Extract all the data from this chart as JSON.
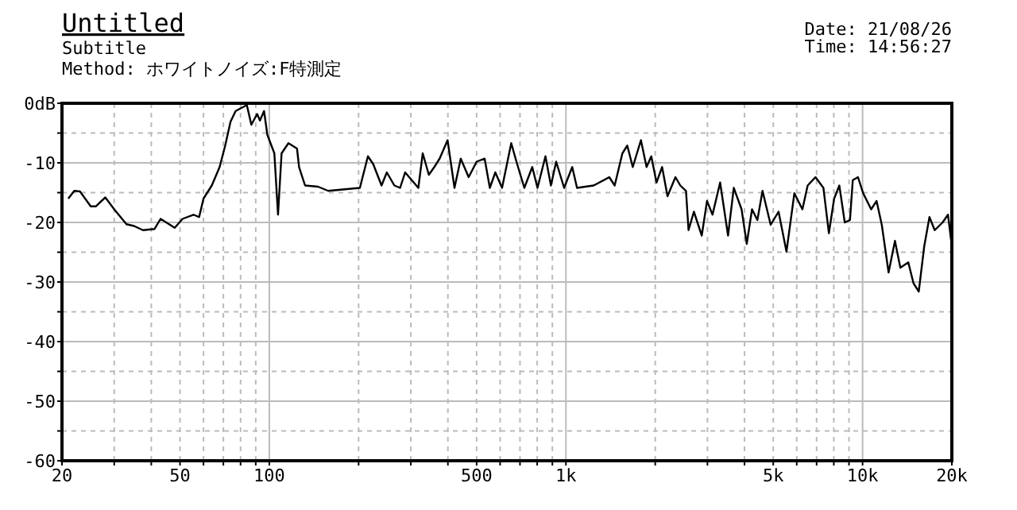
{
  "chart_data": {
    "type": "line",
    "title": "Untitled",
    "subtitle": "Subtitle",
    "annotations": [
      "Method:  ホワイトノイズ:F特測定",
      "Date: 21/08/26",
      "Time: 14:56:27"
    ],
    "x": [
      21,
      22,
      23,
      25,
      26,
      28,
      30,
      33,
      35,
      37.5,
      41,
      43,
      48,
      51,
      55.5,
      58,
      60,
      64,
      68,
      71,
      74,
      77,
      84,
      87,
      91,
      93,
      96,
      98.5,
      104,
      107,
      110,
      116,
      124,
      126,
      132,
      146,
      158,
      202,
      215,
      224,
      239,
      249,
      264,
      276,
      287,
      318,
      329,
      345,
      360,
      375,
      399,
      421,
      442,
      470,
      500,
      532,
      554,
      578,
      609,
      654,
      681,
      724,
      770,
      802,
      853,
      890,
      927,
      986,
      1050,
      1090,
      1240,
      1400,
      1460,
      1550,
      1610,
      1680,
      1790,
      1870,
      1940,
      2020,
      2110,
      2200,
      2340,
      2430,
      2540,
      2590,
      2700,
      2870,
      2990,
      3120,
      3310,
      3520,
      3680,
      3910,
      4070,
      4240,
      4420,
      4600,
      4900,
      5210,
      5540,
      5890,
      6270,
      6530,
      6940,
      7380,
      7700,
      8020,
      8350,
      8710,
      9070,
      9270,
      9650,
      10050,
      10690,
      11150,
      11610,
      12240,
      12860,
      13410,
      14260,
      14850,
      15470,
      16140,
      16810,
      17510,
      18620,
      19410,
      20000
    ],
    "series": [
      {
        "color": "#000000",
        "values": [
          -16,
          -14.7,
          -14.8,
          -17.3,
          -17.3,
          -15.8,
          -17.8,
          -20.3,
          -20.6,
          -21.3,
          -21.1,
          -19.4,
          -20.9,
          -19.4,
          -18.7,
          -19.1,
          -16,
          -13.8,
          -10.7,
          -7.1,
          -3.1,
          -1.3,
          -0.3,
          -3.6,
          -1.8,
          -2.9,
          -1.3,
          -5.3,
          -8.4,
          -18.7,
          -8.4,
          -6.7,
          -7.6,
          -10.7,
          -13.8,
          -14,
          -14.7,
          -14.2,
          -8.9,
          -10.2,
          -13.8,
          -11.6,
          -13.8,
          -14.2,
          -11.6,
          -14.2,
          -8.4,
          -12,
          -10.7,
          -9.3,
          -6.2,
          -14.2,
          -9.3,
          -12.4,
          -9.8,
          -9.3,
          -14.2,
          -11.6,
          -14.2,
          -6.7,
          -9.8,
          -14.2,
          -10.7,
          -14.2,
          -8.9,
          -13.8,
          -9.8,
          -14.2,
          -10.7,
          -14.2,
          -13.8,
          -12.4,
          -13.8,
          -8.4,
          -7.1,
          -10.7,
          -6.2,
          -10.7,
          -8.9,
          -13.3,
          -10.7,
          -15.6,
          -12.4,
          -13.8,
          -14.7,
          -21.3,
          -18.2,
          -22.2,
          -16.4,
          -18.7,
          -13.3,
          -22.2,
          -14.2,
          -17.8,
          -23.6,
          -17.8,
          -19.6,
          -14.7,
          -20.4,
          -18.2,
          -24.9,
          -15.1,
          -17.8,
          -13.8,
          -12.4,
          -14.2,
          -21.8,
          -16,
          -13.8,
          -20,
          -19.6,
          -12.9,
          -12.4,
          -15.1,
          -17.8,
          -16.4,
          -20.4,
          -28.4,
          -23.1,
          -27.6,
          -26.7,
          -30.2,
          -31.6,
          -24,
          -19.1,
          -21.3,
          -20,
          -18.7,
          -24
        ]
      }
    ],
    "log": "x",
    "xlim": [
      20,
      20000
    ],
    "ylim": [
      -60,
      0
    ],
    "xticks": [
      20,
      {
        "value": 30,
        "label": null
      },
      {
        "value": 40,
        "label": null
      },
      50,
      {
        "value": 60,
        "label": null
      },
      {
        "value": 70,
        "label": null
      },
      {
        "value": 80,
        "label": null
      },
      {
        "value": 90,
        "label": null
      },
      100,
      {
        "value": 200,
        "label": null
      },
      {
        "value": 300,
        "label": null
      },
      {
        "value": 400,
        "label": null
      },
      500,
      {
        "value": 600,
        "label": null
      },
      {
        "value": 700,
        "label": null
      },
      {
        "value": 800,
        "label": null
      },
      {
        "value": 900,
        "label": null
      },
      {
        "value": 1000,
        "label": "1k"
      },
      {
        "value": 2000,
        "label": null
      },
      {
        "value": 3000,
        "label": null
      },
      {
        "value": 4000,
        "label": null
      },
      {
        "value": 5000,
        "label": "5k"
      },
      {
        "value": 6000,
        "label": null
      },
      {
        "value": 7000,
        "label": null
      },
      {
        "value": 8000,
        "label": null
      },
      {
        "value": 9000,
        "label": null
      },
      {
        "value": 10000,
        "label": "10k"
      },
      {
        "value": 20000,
        "label": "20k"
      }
    ],
    "yticks": [
      {
        "value": 0,
        "label": "0dB"
      },
      {
        "value": -5,
        "label": null
      },
      -10,
      {
        "value": -15,
        "label": null
      },
      -20,
      {
        "value": -25,
        "label": null
      },
      -30,
      {
        "value": -35,
        "label": null
      },
      -40,
      {
        "value": -45,
        "label": null
      },
      -50,
      {
        "value": -55,
        "label": null
      },
      -60
    ],
    "grid": true
  }
}
